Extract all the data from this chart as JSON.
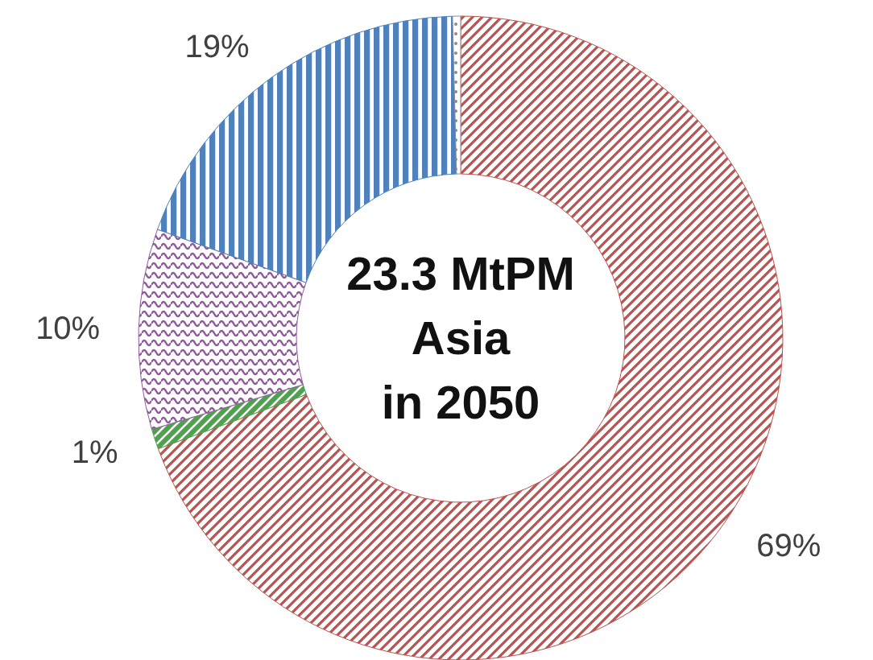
{
  "chart_data": {
    "type": "donut",
    "categories": [
      null,
      null,
      null,
      null,
      null
    ],
    "values": [
      69,
      1,
      10,
      19,
      0.4
    ],
    "colors": [
      "#c0504d",
      "#4ea24e",
      "#8e5a9a",
      "#4f81bd",
      "#8c8c8c"
    ],
    "value_labels": [
      "69%",
      "1%",
      "10%",
      "19%",
      null
    ],
    "annotations": [
      "23.3 MtPM",
      "Asia",
      "in 2050"
    ]
  }
}
